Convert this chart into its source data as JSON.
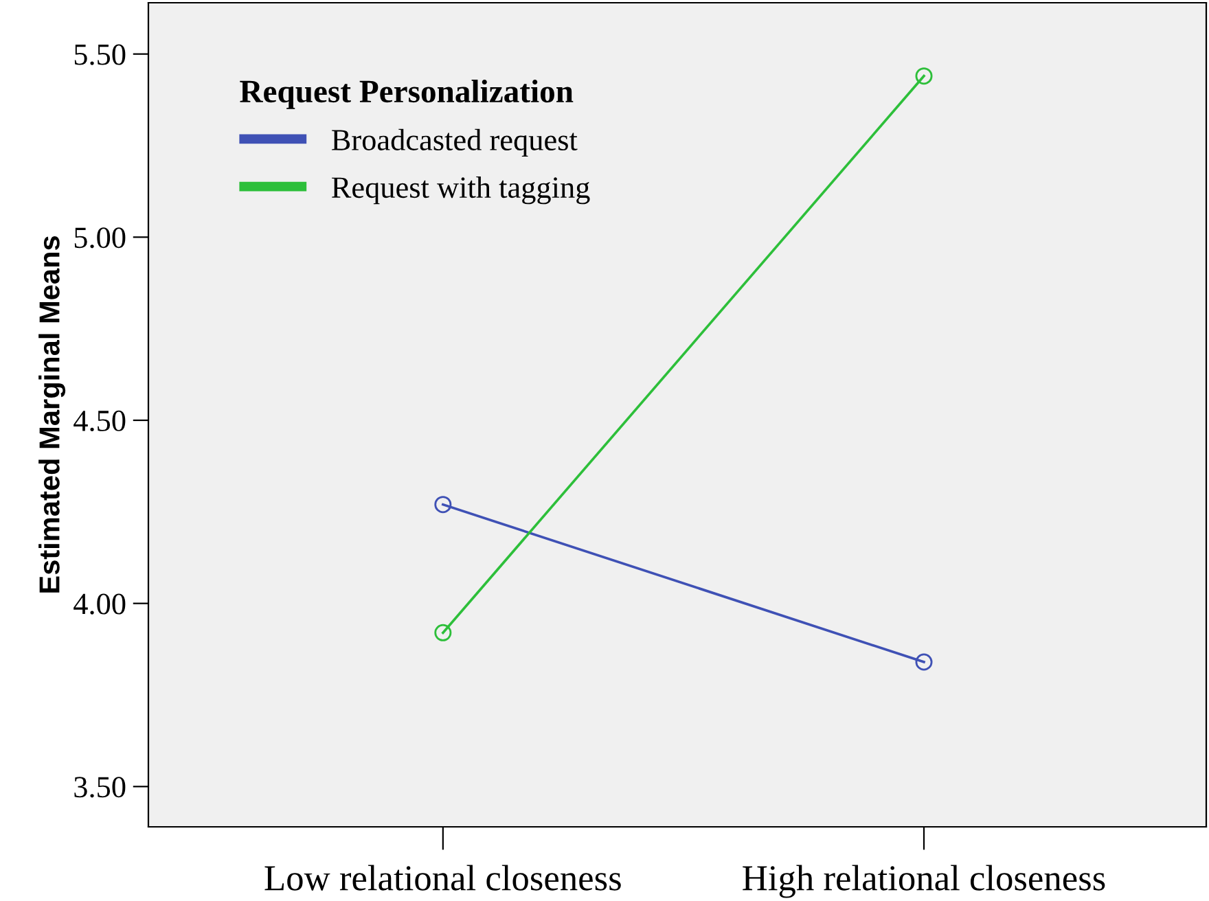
{
  "chart_data": {
    "type": "line",
    "ylabel": "Estimated Marginal Means",
    "legend_title": "Request Personalization",
    "legend": "top left",
    "marker": "circle",
    "line_style": "solid",
    "grid": false,
    "categories": [
      "Low relational closeness",
      "High relational closeness"
    ],
    "series": [
      {
        "name": "Broadcasted request",
        "color": "#3f51b5",
        "values": [
          4.27,
          3.84
        ]
      },
      {
        "name": "Request with tagging",
        "color": "#2dbf3a",
        "values": [
          3.92,
          5.44
        ]
      }
    ],
    "ylim": [
      3.39,
      5.64
    ],
    "yticks": [
      {
        "value": 3.5,
        "label": "3.50"
      },
      {
        "value": 4.0,
        "label": "4.00"
      },
      {
        "value": 4.5,
        "label": "4.50"
      },
      {
        "value": 5.0,
        "label": "5.00"
      },
      {
        "value": 5.5,
        "label": "5.50"
      }
    ]
  }
}
